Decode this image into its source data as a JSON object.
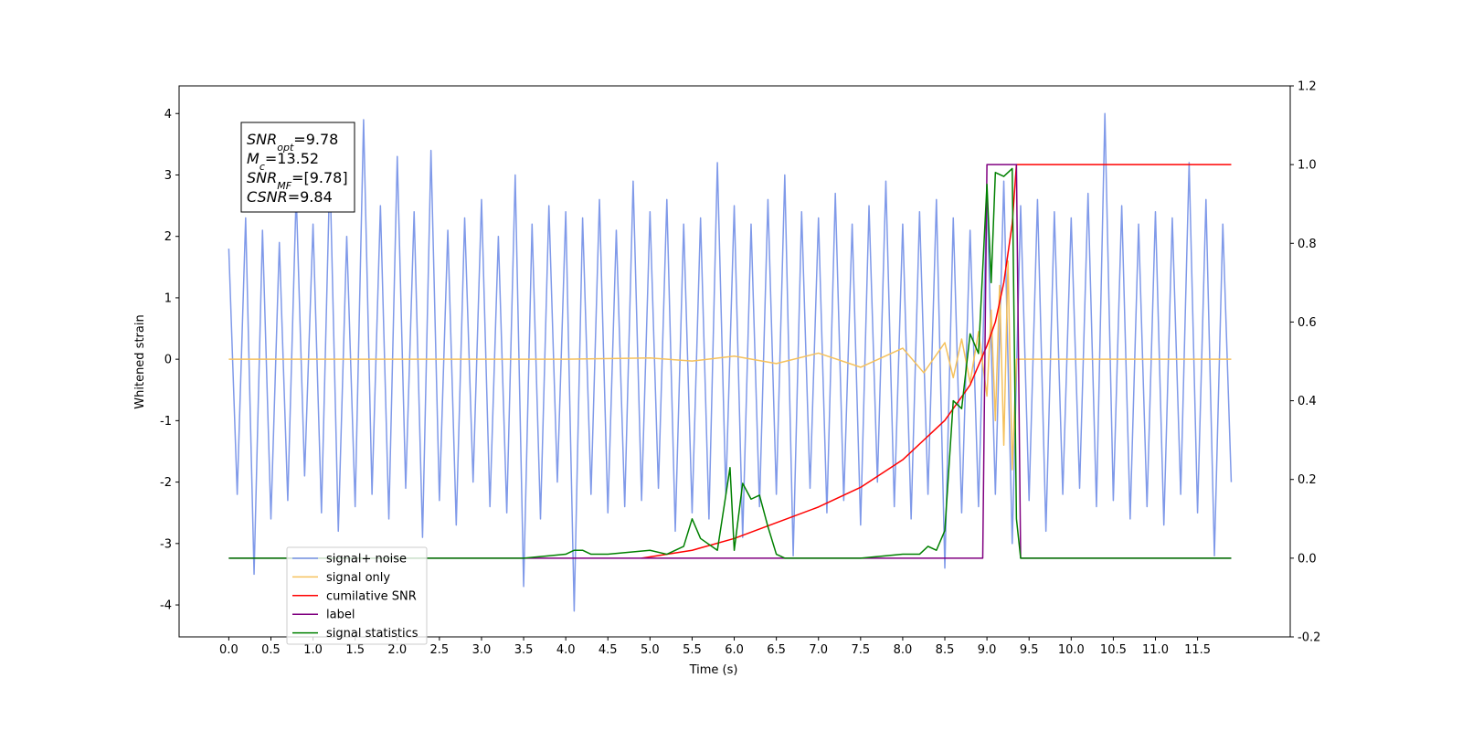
{
  "chart_data": {
    "type": "line",
    "xlabel": "Time (s)",
    "ylabel": "Whitened strain",
    "xlim": [
      -0.59,
      12.6
    ],
    "ylim": [
      -4.52,
      4.45
    ],
    "y2lim": [
      -0.2,
      1.2
    ],
    "xticks": [
      {
        "value": 0,
        "label": "0.0"
      },
      0.5,
      {
        "value": 1,
        "label": "1.0"
      },
      1.5,
      {
        "value": 2,
        "label": "2.0"
      },
      2.5,
      {
        "value": 3,
        "label": "3.0"
      },
      3.5,
      {
        "value": 4,
        "label": "4.0"
      },
      4.5,
      {
        "value": 5,
        "label": "5.0"
      },
      5.5,
      {
        "value": 6,
        "label": "6.0"
      },
      6.5,
      {
        "value": 7,
        "label": "7.0"
      },
      7.5,
      {
        "value": 8,
        "label": "8.0"
      },
      8.5,
      {
        "value": 9,
        "label": "9.0"
      },
      9.5,
      {
        "value": 10,
        "label": "10.0"
      },
      10.5,
      {
        "value": 11,
        "label": "11.0"
      },
      11.5
    ],
    "yticks": [
      -4,
      -3,
      -2,
      -1,
      0,
      1,
      2,
      3,
      4
    ],
    "y2ticks": [
      -0.2,
      {
        "value": 0,
        "label": "0.0"
      },
      0.2,
      0.4,
      0.6,
      0.8,
      {
        "value": 1,
        "label": "1.0"
      },
      1.2
    ],
    "legend": "lower left",
    "annotation": [
      {
        "main": "SNR",
        "sub": "opt",
        "rest": "=9.78"
      },
      {
        "main": "M",
        "sub": "c",
        "rest": "=13.52"
      },
      {
        "main": "SNR",
        "sub": "MF",
        "rest": "=[9.78]"
      },
      {
        "main": "CSNR",
        "sub": "",
        "rest": "=9.84"
      }
    ],
    "series": [
      {
        "name": "signal+ noise",
        "color": "#7893e8",
        "x": [
          0,
          0.1,
          0.2,
          0.3,
          0.4,
          0.5,
          0.6,
          0.7,
          0.8,
          0.9,
          1,
          1.1,
          1.2,
          1.3,
          1.4,
          1.5,
          1.6,
          1.7,
          1.8,
          1.9,
          2,
          2.1,
          2.2,
          2.3,
          2.4,
          2.5,
          2.6,
          2.7,
          2.8,
          2.9,
          3,
          3.1,
          3.2,
          3.3,
          3.4,
          3.5,
          3.6,
          3.7,
          3.8,
          3.9,
          4,
          4.1,
          4.2,
          4.3,
          4.4,
          4.5,
          4.6,
          4.7,
          4.8,
          4.9,
          5,
          5.1,
          5.2,
          5.3,
          5.4,
          5.5,
          5.6,
          5.7,
          5.8,
          5.9,
          6,
          6.1,
          6.2,
          6.3,
          6.4,
          6.5,
          6.6,
          6.7,
          6.8,
          6.9,
          7,
          7.1,
          7.2,
          7.3,
          7.4,
          7.5,
          7.6,
          7.7,
          7.8,
          7.9,
          8,
          8.1,
          8.2,
          8.3,
          8.4,
          8.5,
          8.6,
          8.7,
          8.8,
          8.9,
          9,
          9.1,
          9.2,
          9.3,
          9.4,
          9.5,
          9.6,
          9.7,
          9.8,
          9.9,
          10,
          10.1,
          10.2,
          10.3,
          10.4,
          10.5,
          10.6,
          10.7,
          10.8,
          10.9,
          11,
          11.1,
          11.2,
          11.3,
          11.4,
          11.5,
          11.6,
          11.7,
          11.8,
          11.9
        ],
        "values": [
          1.8,
          -2.2,
          2.3,
          -3.5,
          2.1,
          -2.6,
          1.9,
          -2.3,
          2.7,
          -1.9,
          2.2,
          -2.5,
          3.1,
          -2.8,
          2.0,
          -2.4,
          3.9,
          -2.2,
          2.5,
          -2.6,
          3.3,
          -2.1,
          2.4,
          -2.9,
          3.4,
          -2.3,
          2.1,
          -2.7,
          2.3,
          -2.0,
          2.6,
          -2.4,
          2.0,
          -2.5,
          3.0,
          -3.7,
          2.2,
          -2.6,
          2.5,
          -2.0,
          2.4,
          -4.1,
          2.3,
          -2.2,
          2.6,
          -2.5,
          2.1,
          -2.4,
          2.9,
          -2.3,
          2.4,
          -2.1,
          2.6,
          -2.8,
          2.2,
          -2.5,
          2.3,
          -2.6,
          3.2,
          -2.2,
          2.5,
          -2.9,
          2.2,
          -2.4,
          2.6,
          -2.2,
          3.0,
          -3.2,
          2.4,
          -2.1,
          2.3,
          -2.5,
          2.7,
          -2.3,
          2.2,
          -2.7,
          2.5,
          -2.0,
          2.9,
          -2.4,
          2.2,
          -2.6,
          2.4,
          -2.2,
          2.6,
          -3.4,
          2.3,
          -2.5,
          2.1,
          -2.4,
          2.7,
          -2.2,
          2.9,
          -3.0,
          2.5,
          -2.3,
          2.6,
          -2.8,
          2.4,
          -2.2,
          2.3,
          -2.1,
          2.7,
          -2.4,
          4.0,
          -2.3,
          2.5,
          -2.6,
          2.2,
          -2.4,
          2.4,
          -2.7,
          2.3,
          -2.2,
          3.2,
          -2.5,
          2.6,
          -3.2,
          2.2,
          -2.0
        ]
      },
      {
        "name": "signal only",
        "color": "#f5c15c",
        "x": [
          0,
          1,
          2,
          3,
          4,
          5,
          5.5,
          6,
          6.5,
          7,
          7.5,
          8,
          8.25,
          8.5,
          8.6,
          8.7,
          8.8,
          8.9,
          9.0,
          9.05,
          9.1,
          9.15,
          9.2,
          9.25,
          9.3,
          9.35,
          11.9
        ],
        "values": [
          0,
          0,
          0,
          0,
          0,
          0.02,
          -0.03,
          0.05,
          -0.07,
          0.1,
          -0.13,
          0.18,
          -0.22,
          0.27,
          -0.3,
          0.33,
          -0.38,
          0.45,
          -0.6,
          0.8,
          -1.0,
          1.2,
          -1.4,
          1.6,
          -1.8,
          0,
          0
        ]
      },
      {
        "name": "cumilative SNR",
        "color": "#ff0000",
        "axis": "y2",
        "x": [
          4.9,
          5.5,
          6,
          6.5,
          7,
          7.5,
          8,
          8.5,
          8.8,
          9.0,
          9.1,
          9.2,
          9.3,
          9.35,
          11.9
        ],
        "values": [
          0,
          0.02,
          0.05,
          0.09,
          0.13,
          0.18,
          0.25,
          0.35,
          0.44,
          0.54,
          0.6,
          0.7,
          0.85,
          1.0,
          1.0
        ]
      },
      {
        "name": "label",
        "color": "#800080",
        "axis": "y2",
        "x": [
          0,
          8.95,
          9.0,
          9.35,
          9.4,
          11.9
        ],
        "values": [
          0,
          0,
          1,
          1,
          0,
          0
        ]
      },
      {
        "name": "signal statistics",
        "color": "#008000",
        "axis": "y2",
        "x": [
          0,
          3.5,
          4.0,
          4.1,
          4.2,
          4.3,
          4.5,
          5.0,
          5.2,
          5.4,
          5.5,
          5.6,
          5.8,
          5.95,
          6.0,
          6.1,
          6.2,
          6.3,
          6.4,
          6.5,
          6.6,
          7.5,
          8.0,
          8.2,
          8.3,
          8.4,
          8.5,
          8.6,
          8.7,
          8.8,
          8.9,
          9.0,
          9.05,
          9.1,
          9.2,
          9.3,
          9.35,
          9.4,
          9.5,
          11.9
        ],
        "values": [
          0,
          0,
          0.01,
          0.02,
          0.02,
          0.01,
          0.01,
          0.02,
          0.01,
          0.03,
          0.1,
          0.05,
          0.02,
          0.23,
          0.02,
          0.19,
          0.15,
          0.16,
          0.08,
          0.01,
          0,
          0,
          0.01,
          0.01,
          0.03,
          0.02,
          0.07,
          0.4,
          0.38,
          0.57,
          0.52,
          0.95,
          0.7,
          0.98,
          0.97,
          0.99,
          0.1,
          0,
          0,
          0
        ]
      }
    ]
  }
}
